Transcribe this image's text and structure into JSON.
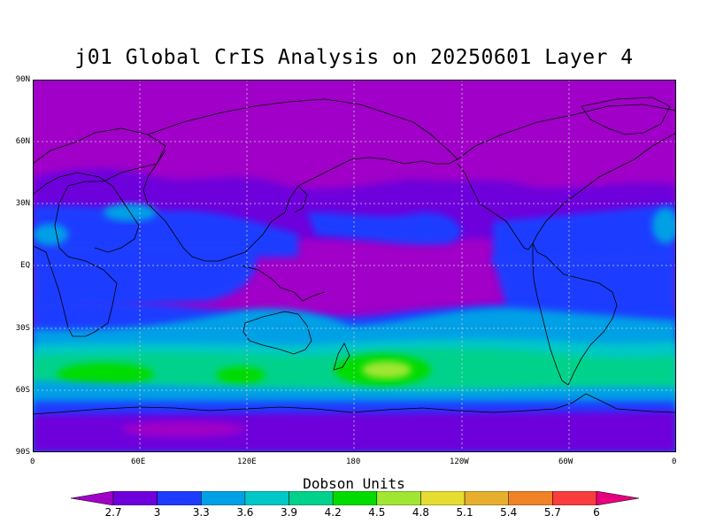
{
  "title": "j01 Global CrIS Analysis on 20250601 Layer 4",
  "colorbar": {
    "title": "Dobson Units",
    "levels": [
      "2.7",
      "3",
      "3.3",
      "3.6",
      "3.9",
      "4.2",
      "4.5",
      "4.8",
      "5.1",
      "5.4",
      "5.7",
      "6"
    ],
    "colors": [
      "#a000c8",
      "#6e00dc",
      "#1e3cff",
      "#00a0e6",
      "#00c8c8",
      "#00d28c",
      "#00dc00",
      "#a0e632",
      "#e6dc32",
      "#e6af2d",
      "#f08228",
      "#fa3c3c",
      "#e6007d"
    ]
  },
  "axes": {
    "lat_labels": [
      "90N",
      "60N",
      "30N",
      "EQ",
      "30S",
      "60S",
      "90S"
    ],
    "lon_labels": [
      "0",
      "60E",
      "120E",
      "180",
      "120W",
      "60W",
      "0"
    ]
  },
  "map": {
    "projection": "equirectangular",
    "variable": "ozone layer 4",
    "units": "Dobson Units",
    "grid": true
  }
}
